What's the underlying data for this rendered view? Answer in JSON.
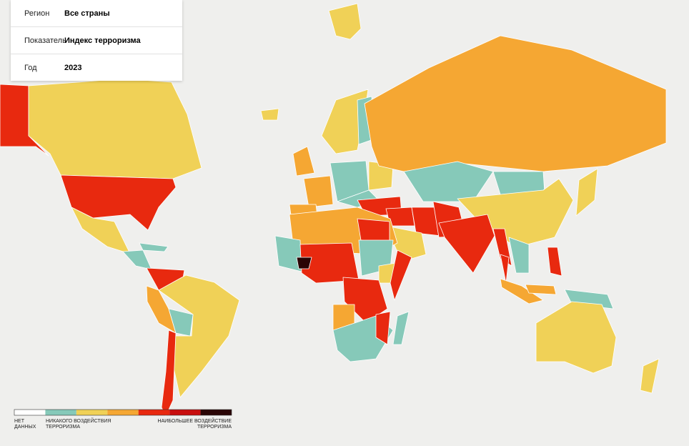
{
  "filters": [
    {
      "label": "Регион",
      "value": "Все страны"
    },
    {
      "label": "Показатель",
      "value": "Индекс терроризма"
    },
    {
      "label": "Год",
      "value": "2023"
    }
  ],
  "legend": {
    "colors": [
      "#ffffff",
      "#86c9b9",
      "#f0d157",
      "#f5a733",
      "#e8290f",
      "#c80e0e",
      "#2a0505"
    ],
    "labels": {
      "none": "НЕТ ДАННЫХ",
      "low": "НИКАКОГО ВОЗДЕЙСТВИЯ ТЕРРОРИЗМА",
      "high": "НАИБОЛЬШЕЕ ВОЗДЕЙСТВИЕ ТЕРРОРИЗМА"
    }
  }
}
